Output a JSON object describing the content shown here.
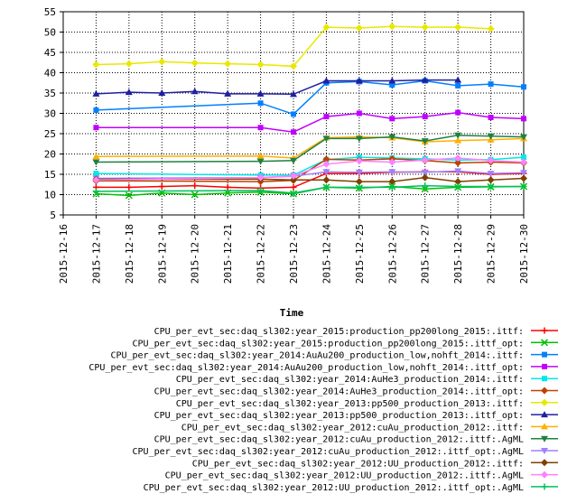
{
  "chart_data": {
    "type": "line",
    "title": "",
    "xlabel": "Time",
    "ylabel": "",
    "ylim": [
      5,
      55
    ],
    "yticks": [
      "5",
      "10",
      "15",
      "20",
      "25",
      "30",
      "35",
      "40",
      "45",
      "50",
      "55"
    ],
    "categories": [
      "2015-12-16",
      "2015-12-17",
      "2015-12-18",
      "2015-12-19",
      "2015-12-20",
      "2015-12-21",
      "2015-12-22",
      "2015-12-23",
      "2015-12-24",
      "2015-12-25",
      "2015-12-26",
      "2015-12-27",
      "2015-12-28",
      "2015-12-29",
      "2015-12-30"
    ],
    "grid": true,
    "legend_position": "bottom",
    "series": [
      {
        "name": "CPU_per_evt_sec:daq_sl302:year_2015:production_pp200long_2015:.ittf:",
        "color": "#ff0000",
        "marker": "plus",
        "values": [
          null,
          11.8,
          11.8,
          12.0,
          12.2,
          11.8,
          11.6,
          11.8,
          15.2,
          15.2,
          15.5,
          15.6,
          15.6,
          15.0,
          15.2
        ]
      },
      {
        "name": "CPU_per_evt_sec:daq_sl302:year_2015:production_pp200long_2015:.ittf_opt:",
        "color": "#00c000",
        "marker": "cross",
        "values": [
          null,
          10.2,
          9.8,
          10.4,
          10.0,
          10.4,
          10.6,
          10.2,
          11.8,
          11.6,
          12.0,
          11.4,
          11.8,
          11.9,
          12.0
        ]
      },
      {
        "name": "CPU_per_evt_sec:daq_sl302:year_2014:AuAu200_production_low,nohft_2014:.ittf:",
        "color": "#0080ff",
        "marker": "square",
        "values": [
          null,
          30.8,
          null,
          null,
          null,
          null,
          32.5,
          29.8,
          37.5,
          37.8,
          37.0,
          38.0,
          36.8,
          37.2,
          36.5
        ]
      },
      {
        "name": "CPU_per_evt_sec:daq_sl302:year_2014:AuAu200_production_low,nohft_2014:.ittf_opt:",
        "color": "#c000ff",
        "marker": "square",
        "values": [
          null,
          26.5,
          null,
          null,
          null,
          null,
          26.5,
          25.4,
          29.2,
          30.0,
          28.7,
          29.2,
          30.2,
          29.0,
          28.7
        ]
      },
      {
        "name": "CPU_per_evt_sec:daq_sl302:year_2014:AuHe3_production_2014:.ittf:",
        "color": "#00e8e8",
        "marker": "square",
        "values": [
          null,
          15.2,
          null,
          null,
          null,
          null,
          14.8,
          14.8,
          18.6,
          19.2,
          19.0,
          18.8,
          18.5,
          18.6,
          19.2
        ]
      },
      {
        "name": "CPU_per_evt_sec:daq_sl302:year_2014:AuHe3_production_2014:.ittf_opt:",
        "color": "#c04000",
        "marker": "diamond",
        "values": [
          null,
          13.4,
          null,
          null,
          null,
          null,
          13.2,
          13.5,
          18.7,
          18.5,
          18.8,
          18.4,
          17.8,
          18.0,
          17.8
        ]
      },
      {
        "name": "CPU_per_evt_sec:daq_sl302:year_2013:pp500_production_2013:.ittf:",
        "color": "#e8e800",
        "marker": "diamond",
        "values": [
          null,
          42.0,
          42.2,
          42.7,
          42.4,
          42.2,
          42.0,
          41.6,
          51.2,
          51.0,
          51.4,
          51.2,
          51.2,
          50.8,
          null
        ]
      },
      {
        "name": "CPU_per_evt_sec:daq_sl302:year_2013:pp500_production_2013:.ittf_opt:",
        "color": "#2020a0",
        "marker": "triangle",
        "values": [
          null,
          34.8,
          35.2,
          35.0,
          35.4,
          34.8,
          34.8,
          34.7,
          38.0,
          38.0,
          38.0,
          38.2,
          38.2,
          null,
          null
        ]
      },
      {
        "name": "CPU_per_evt_sec:daq_sl302:year_2012:cuAu_production_2012:.ittf:",
        "color": "#ffb000",
        "marker": "triangle",
        "values": [
          null,
          19.4,
          null,
          null,
          null,
          null,
          19.5,
          19.0,
          24.0,
          24.2,
          24.0,
          23.0,
          23.3,
          23.5,
          23.8
        ]
      },
      {
        "name": "CPU_per_evt_sec:daq_sl302:year_2012:cuAu_production_2012:.ittf:.AgML",
        "color": "#208040",
        "marker": "triangle-down",
        "values": [
          null,
          18.0,
          null,
          null,
          null,
          null,
          18.2,
          18.4,
          23.8,
          23.8,
          24.2,
          23.2,
          24.6,
          24.4,
          24.2
        ]
      },
      {
        "name": "CPU_per_evt_sec:daq_sl302:year_2012:cuAu_production_2012:.ittf_opt:.AgML",
        "color": "#a080ff",
        "marker": "triangle-down",
        "values": [
          null,
          14.0,
          null,
          null,
          null,
          null,
          14.2,
          14.5,
          15.6,
          15.5,
          15.6,
          15.5,
          15.8,
          15.2,
          15.4
        ]
      },
      {
        "name": "CPU_per_evt_sec:daq_sl302:year_2012:UU_production_2012:.ittf:",
        "color": "#804000",
        "marker": "diamond",
        "values": [
          null,
          13.8,
          null,
          null,
          null,
          null,
          13.8,
          13.6,
          13.6,
          13.2,
          13.2,
          14.2,
          13.2,
          13.6,
          14.0
        ]
      },
      {
        "name": "CPU_per_evt_sec:daq_sl302:year_2012:UU_production_2012:.ittf:.AgML",
        "color": "#ff80ff",
        "marker": "diamond",
        "values": [
          null,
          13.6,
          null,
          null,
          null,
          null,
          14.2,
          14.6,
          17.5,
          18.3,
          18.0,
          18.5,
          19.0,
          18.4,
          18.0
        ]
      },
      {
        "name": "CPU_per_evt_sec:daq_sl302:year_2012:UU_production_2012:.ittf_opt:.AgML",
        "color": "#00c060",
        "marker": "plus",
        "values": [
          null,
          10.8,
          null,
          null,
          null,
          null,
          11.0,
          10.4,
          11.8,
          11.8,
          11.8,
          12.2,
          12.0,
          12.0,
          12.0
        ]
      }
    ]
  }
}
